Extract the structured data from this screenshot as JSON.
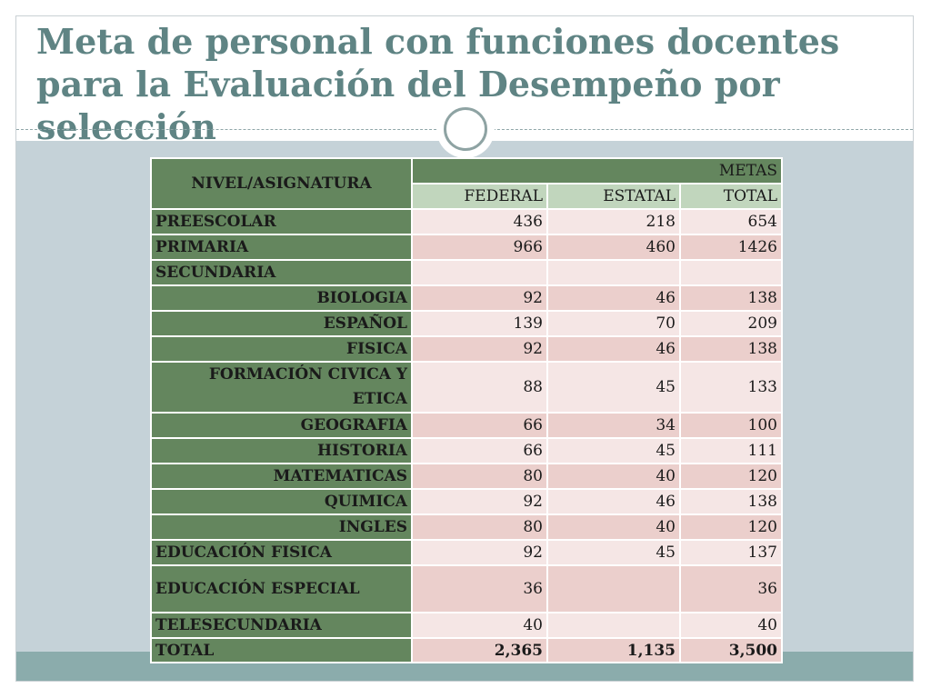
{
  "title": "Meta de personal con funciones  docentes para la Evaluación del Desempeño por selección",
  "table": {
    "header": {
      "level_label": "NIVEL/ASIGNATURA",
      "metas_label": "METAS",
      "columns": [
        "FEDERAL",
        "ESTATAL",
        "TOTAL"
      ]
    },
    "rows": [
      {
        "label": "PREESCOLAR",
        "indent": false,
        "federal": "436",
        "estatal": "218",
        "total": "654"
      },
      {
        "label": "PRIMARIA",
        "indent": false,
        "federal": "966",
        "estatal": "460",
        "total": "1426"
      },
      {
        "label": "SECUNDARIA",
        "indent": false,
        "federal": "",
        "estatal": "",
        "total": ""
      },
      {
        "label": "BIOLOGIA",
        "indent": true,
        "federal": "92",
        "estatal": "46",
        "total": "138"
      },
      {
        "label": "ESPAÑOL",
        "indent": true,
        "federal": "139",
        "estatal": "70",
        "total": "209"
      },
      {
        "label": "FISICA",
        "indent": true,
        "federal": "92",
        "estatal": "46",
        "total": "138"
      },
      {
        "label": "FORMACIÓN CIVICA Y ETICA",
        "indent": true,
        "federal": "88",
        "estatal": "45",
        "total": "133"
      },
      {
        "label": "GEOGRAFIA",
        "indent": true,
        "federal": "66",
        "estatal": "34",
        "total": "100"
      },
      {
        "label": "HISTORIA",
        "indent": true,
        "federal": "66",
        "estatal": "45",
        "total": "111"
      },
      {
        "label": "MATEMATICAS",
        "indent": true,
        "federal": "80",
        "estatal": "40",
        "total": "120"
      },
      {
        "label": "QUIMICA",
        "indent": true,
        "federal": "92",
        "estatal": "46",
        "total": "138"
      },
      {
        "label": "INGLES",
        "indent": true,
        "federal": "80",
        "estatal": "40",
        "total": "120"
      },
      {
        "label": "EDUCACIÓN FISICA",
        "indent": false,
        "federal": "92",
        "estatal": "45",
        "total": "137"
      },
      {
        "label": "EDUCACIÓN ESPECIAL",
        "indent": false,
        "federal": "36",
        "estatal": "",
        "total": "36"
      },
      {
        "label": "TELESECUNDARIA",
        "indent": false,
        "federal": "40",
        "estatal": "",
        "total": "40"
      }
    ],
    "total_row": {
      "label": "TOTAL",
      "federal": "2,365",
      "estatal": "1,135",
      "total": "3,500"
    }
  }
}
